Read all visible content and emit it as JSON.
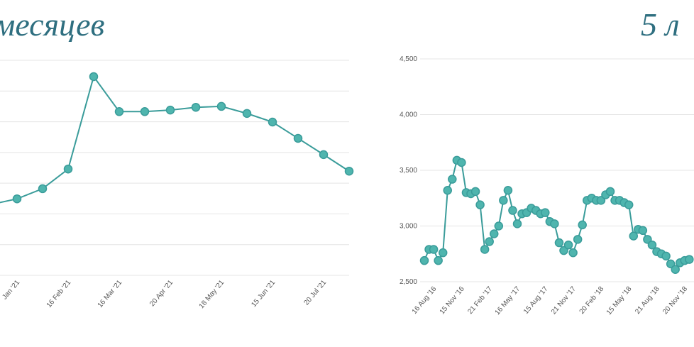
{
  "chart_data": [
    {
      "type": "line",
      "title": "месяцев",
      "categories": [
        null,
        "Jan '21",
        null,
        "16 Feb '21",
        null,
        "16 Mar '21",
        null,
        "20 Apr '21",
        null,
        "18 May '21",
        null,
        "15 Jun '21",
        null,
        "20 Jul '21",
        null
      ],
      "series": [
        {
          "color": "#3a9c9a",
          "values": [
            2.31,
            2.49,
            2.82,
            3.46,
            6.47,
            5.33,
            5.33,
            5.38,
            5.47,
            5.5,
            5.27,
            4.99,
            4.46,
            3.93,
            3.39
          ]
        }
      ],
      "ylim": [
        0,
        7
      ],
      "grid": true
    },
    {
      "type": "line",
      "title": "5 л",
      "categories": [
        null,
        null,
        "16 Aug '16",
        null,
        null,
        null,
        null,
        null,
        "15 Nov '16",
        null,
        null,
        null,
        null,
        null,
        "21 Feb '17",
        null,
        null,
        null,
        null,
        null,
        "16 May '17",
        null,
        null,
        null,
        null,
        null,
        "15 Aug '17",
        null,
        null,
        null,
        null,
        null,
        "21 Nov '17",
        null,
        null,
        null,
        null,
        null,
        "20 Feb '18",
        null,
        null,
        null,
        null,
        null,
        "15 May '18",
        null,
        null,
        null,
        null,
        null,
        "21 Aug '18",
        null,
        null,
        null,
        null,
        null,
        "20 Nov '18",
        null
      ],
      "series": [
        {
          "color": "#3a9c9a",
          "values": [
            2690,
            2790,
            2790,
            2690,
            2760,
            3320,
            3420,
            3590,
            3570,
            3300,
            3290,
            3310,
            3190,
            2790,
            2860,
            2930,
            3000,
            3230,
            3320,
            3140,
            3020,
            3110,
            3120,
            3160,
            3140,
            3110,
            3120,
            3040,
            3020,
            2850,
            2780,
            2830,
            2760,
            2880,
            3010,
            3230,
            3250,
            3230,
            3230,
            3280,
            3310,
            3230,
            3230,
            3210,
            3190,
            2910,
            2970,
            2960,
            2880,
            2830,
            2770,
            2750,
            2730,
            2660,
            2610,
            2670,
            2690,
            2700
          ]
        }
      ],
      "ylim": [
        2500,
        4500
      ],
      "yticks": [
        {
          "value": 2500,
          "label": "2,500"
        },
        {
          "value": 3000,
          "label": "3,000"
        },
        {
          "value": 3500,
          "label": "3,500"
        },
        {
          "value": 4000,
          "label": "4,000"
        },
        {
          "value": 4500,
          "label": "4,500"
        }
      ],
      "grid": true
    }
  ]
}
